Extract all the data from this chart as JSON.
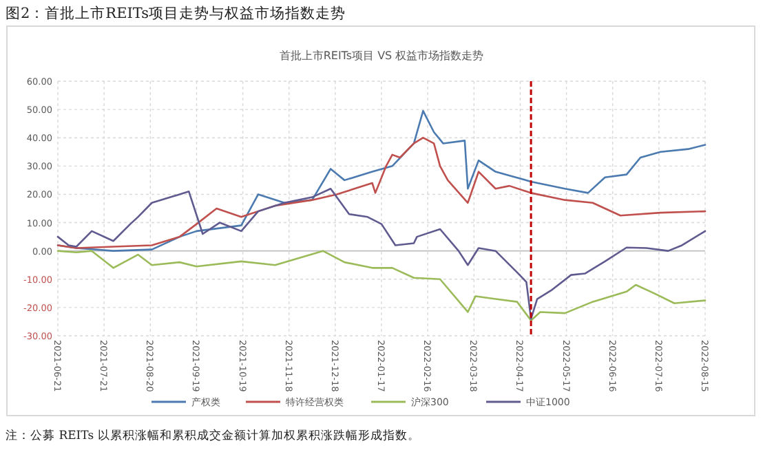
{
  "chart_data": {
    "type": "line",
    "title": "图2：首批上市REITs项目走势与权益市场指数走势",
    "subtitle": "首批上市REITs项目 VS 权益市场指数走势",
    "annotations": [
      "注：公募 REITs 以累积涨幅和累积成交金额计算加权累积涨跌幅形成指数。"
    ],
    "xlim": [
      "2021-06-21",
      "2022-08-15"
    ],
    "xticks": [
      "2021-06-21",
      "2021-07-21",
      "2021-08-20",
      "2021-09-19",
      "2021-10-19",
      "2021-11-18",
      "2021-12-18",
      "2022-01-17",
      "2022-02-16",
      "2022-03-18",
      "2022-04-17",
      "2022-05-17",
      "2022-06-16",
      "2022-07-16",
      "2022-08-15"
    ],
    "ylim": [
      -30,
      60
    ],
    "yticks": [
      {
        "value": -30,
        "label": "-30.00"
      },
      {
        "value": -20,
        "label": "-20.00"
      },
      {
        "value": -10,
        "label": "-10.00"
      },
      {
        "value": 0,
        "label": "0.00"
      },
      {
        "value": 10,
        "label": "10.00"
      },
      {
        "value": 20,
        "label": "20.00"
      },
      {
        "value": 30,
        "label": "30.00"
      },
      {
        "value": 40,
        "label": "40.00"
      },
      {
        "value": 50,
        "label": "50.00"
      },
      {
        "value": 60,
        "label": "60.00"
      }
    ],
    "grid": true,
    "legend": "bottom",
    "line_style": "solid",
    "ref_lines": [
      {
        "axis": "x",
        "value": "2022-04-24",
        "color": "#c00000",
        "line_style": "dashed"
      }
    ],
    "series": [
      {
        "name": "产权类",
        "color": "#4a7ab0",
        "x": [
          "2021-06-21",
          "2021-07-03",
          "2021-07-27",
          "2021-08-21",
          "2021-09-08",
          "2021-09-19",
          "2021-10-18",
          "2021-10-29",
          "2021-11-15",
          "2021-12-03",
          "2021-12-15",
          "2021-12-24",
          "2022-01-11",
          "2022-01-24",
          "2022-02-07",
          "2022-02-13",
          "2022-02-20",
          "2022-02-26",
          "2022-03-12",
          "2022-03-14",
          "2022-03-21",
          "2022-04-01",
          "2022-04-24",
          "2022-05-16",
          "2022-05-31",
          "2022-06-11",
          "2022-06-25",
          "2022-07-04",
          "2022-07-17",
          "2022-08-04",
          "2022-08-15"
        ],
        "values": [
          2,
          1,
          0,
          0.5,
          5,
          7,
          9,
          20,
          17,
          18,
          29,
          25,
          28,
          30,
          38,
          49.5,
          42,
          38,
          39,
          22,
          32,
          28,
          24.5,
          22,
          20.5,
          26,
          27,
          33,
          35,
          36,
          37.5
        ]
      },
      {
        "name": "特许经营权类",
        "color": "#c0504d",
        "x": [
          "2021-06-21",
          "2021-07-03",
          "2021-07-27",
          "2021-08-21",
          "2021-09-08",
          "2021-09-19",
          "2021-10-02",
          "2021-10-18",
          "2021-11-09",
          "2021-12-03",
          "2021-12-19",
          "2022-01-11",
          "2022-01-13",
          "2022-01-20",
          "2022-01-24",
          "2022-01-29",
          "2022-02-07",
          "2022-02-13",
          "2022-02-20",
          "2022-02-24",
          "2022-03-01",
          "2022-03-14",
          "2022-03-21",
          "2022-04-01",
          "2022-04-10",
          "2022-04-24",
          "2022-05-16",
          "2022-06-03",
          "2022-06-21",
          "2022-07-17",
          "2022-08-15"
        ],
        "values": [
          2,
          1,
          1.5,
          2,
          5,
          9.5,
          15,
          12,
          16,
          18,
          20,
          24,
          20.5,
          30,
          34,
          33,
          38,
          40,
          38,
          30,
          25,
          17,
          28,
          22,
          23,
          20.5,
          18,
          17,
          12.5,
          13.5,
          14
        ]
      },
      {
        "name": "沪深300",
        "color": "#9bbb59",
        "x": [
          "2021-06-21",
          "2021-07-03",
          "2021-07-13",
          "2021-07-27",
          "2021-08-12",
          "2021-08-21",
          "2021-09-08",
          "2021-09-19",
          "2021-10-18",
          "2021-11-09",
          "2021-12-10",
          "2021-12-24",
          "2022-01-11",
          "2022-01-24",
          "2022-02-07",
          "2022-02-24",
          "2022-03-14",
          "2022-03-19",
          "2022-04-01",
          "2022-04-15",
          "2022-04-24",
          "2022-04-30",
          "2022-05-16",
          "2022-06-03",
          "2022-06-25",
          "2022-07-01",
          "2022-07-13",
          "2022-07-26",
          "2022-08-15"
        ],
        "values": [
          0,
          -0.5,
          0,
          -6,
          -1.3,
          -5,
          -4,
          -5.5,
          -3.7,
          -5,
          0,
          -4,
          -6,
          -6,
          -9.5,
          -10,
          -21.6,
          -16,
          -17,
          -18,
          -24.6,
          -21.6,
          -22,
          -18,
          -14.4,
          -12,
          -15,
          -18.5,
          -17.5
        ]
      },
      {
        "name": "中证1000",
        "color": "#5f5a8f",
        "x": [
          "2021-06-21",
          "2021-06-28",
          "2021-07-03",
          "2021-07-13",
          "2021-07-27",
          "2021-08-07",
          "2021-08-12",
          "2021-08-21",
          "2021-09-14",
          "2021-09-23",
          "2021-10-04",
          "2021-10-18",
          "2021-10-29",
          "2021-11-15",
          "2021-12-03",
          "2021-12-15",
          "2021-12-27",
          "2022-01-08",
          "2022-01-17",
          "2022-01-26",
          "2022-02-07",
          "2022-02-09",
          "2022-02-24",
          "2022-03-08",
          "2022-03-14",
          "2022-03-21",
          "2022-04-01",
          "2022-04-15",
          "2022-04-21",
          "2022-04-24",
          "2022-04-28",
          "2022-05-07",
          "2022-05-20",
          "2022-05-29",
          "2022-06-11",
          "2022-06-25",
          "2022-07-08",
          "2022-07-22",
          "2022-07-31",
          "2022-08-15"
        ],
        "values": [
          5,
          2,
          1.5,
          7,
          3.5,
          9.5,
          12,
          17,
          21,
          6,
          10,
          7,
          14,
          17,
          19,
          22,
          13,
          12,
          9.5,
          2,
          2.7,
          5,
          7.7,
          0,
          -5,
          1,
          0,
          -7.6,
          -11,
          -24,
          -17,
          -14,
          -8.5,
          -8,
          -3.7,
          1.2,
          1,
          0,
          2,
          7
        ]
      }
    ]
  }
}
